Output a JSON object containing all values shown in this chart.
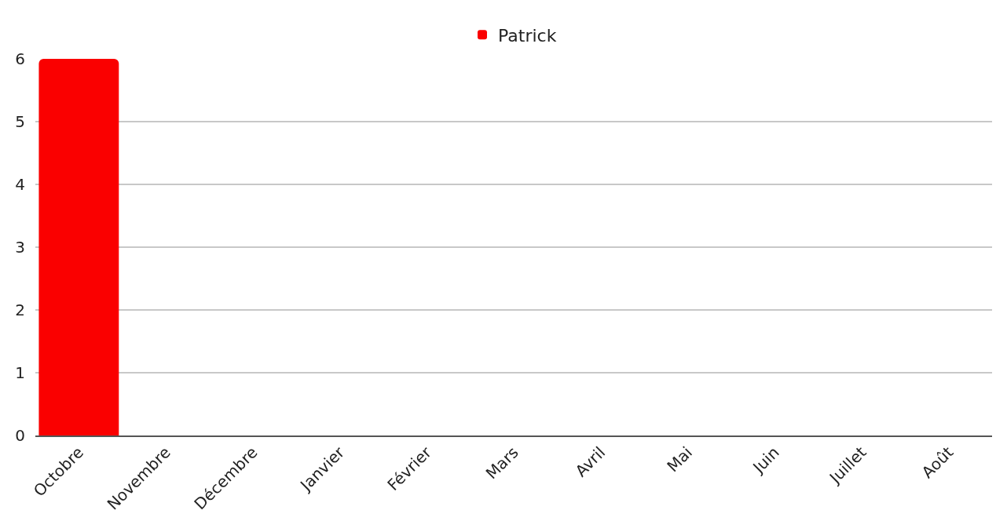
{
  "chart_data": {
    "type": "bar",
    "categories": [
      "Octobre",
      "Novembre",
      "Décembre",
      "Janvier",
      "Février",
      "Mars",
      "Avril",
      "Mai",
      "Juin",
      "Juillet",
      "Août"
    ],
    "series": [
      {
        "name": "Patrick",
        "color": "#fa0000",
        "values": [
          6,
          0,
          0,
          0,
          0,
          0,
          0,
          0,
          0,
          0,
          0
        ]
      }
    ],
    "ylim": [
      0,
      6
    ],
    "yticks": [
      0,
      1,
      2,
      3,
      4,
      5,
      6
    ],
    "grid": "y",
    "legend": "top"
  }
}
